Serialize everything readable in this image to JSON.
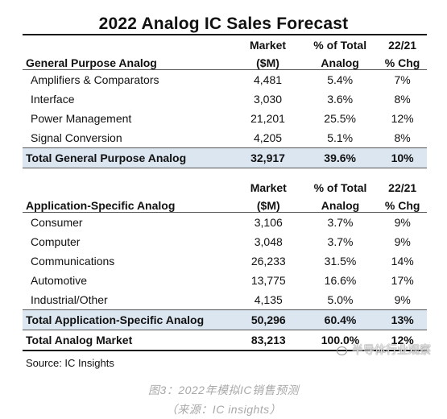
{
  "title": "2022 Analog IC Sales Forecast",
  "columns": {
    "market_line1": "Market",
    "market_line2": "($M)",
    "share_line1": "% of Total",
    "share_line2": "Analog",
    "chg_line1": "22/21",
    "chg_line2": "% Chg"
  },
  "general_purpose": {
    "heading": "General Purpose Analog",
    "rows": [
      {
        "label": "Amplifiers & Comparators",
        "market": "4,481",
        "share": "5.4%",
        "chg": "7%"
      },
      {
        "label": "Interface",
        "market": "3,030",
        "share": "3.6%",
        "chg": "8%"
      },
      {
        "label": "Power Management",
        "market": "21,201",
        "share": "25.5%",
        "chg": "12%"
      },
      {
        "label": "Signal Conversion",
        "market": "4,205",
        "share": "5.1%",
        "chg": "8%"
      }
    ],
    "total": {
      "label": "Total General Purpose Analog",
      "market": "32,917",
      "share": "39.6%",
      "chg": "10%"
    }
  },
  "application_specific": {
    "heading": "Application-Specific Analog",
    "rows": [
      {
        "label": "Consumer",
        "market": "3,106",
        "share": "3.7%",
        "chg": "9%"
      },
      {
        "label": "Computer",
        "market": "3,048",
        "share": "3.7%",
        "chg": "9%"
      },
      {
        "label": "Communications",
        "market": "26,233",
        "share": "31.5%",
        "chg": "14%"
      },
      {
        "label": "Automotive",
        "market": "13,775",
        "share": "16.6%",
        "chg": "17%"
      },
      {
        "label": "Industrial/Other",
        "market": "4,135",
        "share": "5.0%",
        "chg": "9%"
      }
    ],
    "total": {
      "label": "Total Application-Specific Analog",
      "market": "50,296",
      "share": "60.4%",
      "chg": "13%"
    }
  },
  "grand_total": {
    "label": "Total Analog Market",
    "market": "83,213",
    "share": "100.0%",
    "chg": "12%"
  },
  "source": "Source:  IC Insights",
  "watermark": "半导体行业观察",
  "caption_line1": "图3：2022年模拟IC销售预测",
  "caption_line2": "（来源：IC insights）",
  "colors": {
    "total_row_fill": "#dce6f1",
    "caption_gray": "#a8a8a8"
  }
}
